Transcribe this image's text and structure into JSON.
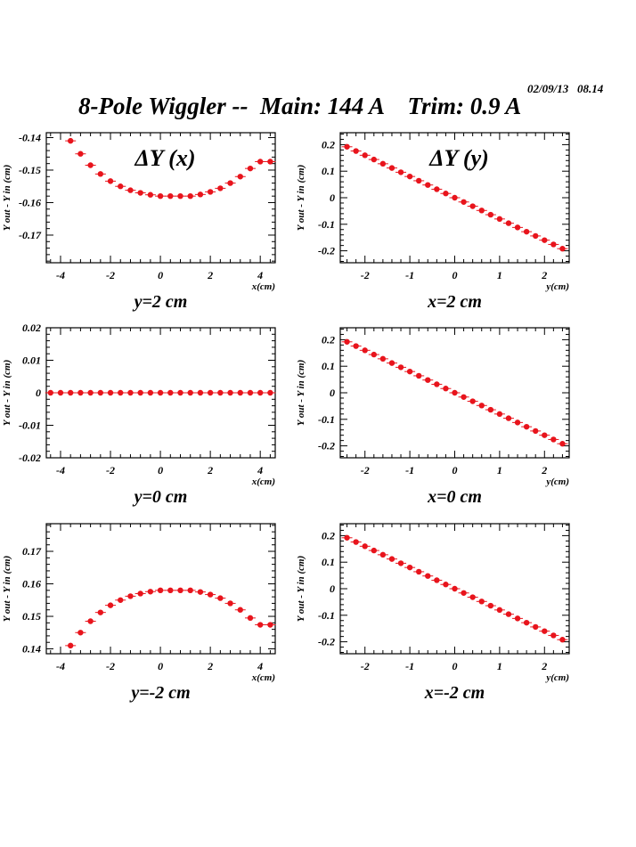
{
  "header": {
    "timestamp": "02/09/13   08.14",
    "title": "8-Pole Wiggler --  Main: 144 A    Trim: 0.9 A"
  },
  "colors": {
    "marker": "#e8141c",
    "axis": "#000000"
  },
  "chart_data": [
    {
      "type": "scatter",
      "title": "ΔY (x)",
      "caption": "y=2 cm",
      "xlabel": "x(cm)",
      "ylabel": "Y_out - Y_in (cm)",
      "xlim": [
        -4.57,
        4.6
      ],
      "ylim": [
        -0.1785,
        -0.1385
      ],
      "xticks": [
        -4,
        -2,
        0,
        2,
        4
      ],
      "xtick_labels": [
        "-4",
        "-2",
        "0",
        "2",
        "4"
      ],
      "yticks": [
        -0.17,
        -0.16,
        -0.15,
        -0.14
      ],
      "ytick_labels": [
        "-0.17",
        "-0.16",
        "-0.15",
        "-0.14"
      ],
      "x": [
        -3.6,
        -3.2,
        -2.8,
        -2.4,
        -2.0,
        -1.6,
        -1.2,
        -0.8,
        -0.4,
        0,
        0.4,
        0.8,
        1.2,
        1.6,
        2.0,
        2.4,
        2.8,
        3.2,
        3.6,
        4.0,
        4.4
      ],
      "y": [
        -0.141,
        -0.145,
        -0.1485,
        -0.1512,
        -0.1534,
        -0.155,
        -0.1562,
        -0.157,
        -0.1576,
        -0.158,
        -0.158,
        -0.158,
        -0.158,
        -0.1575,
        -0.1567,
        -0.1556,
        -0.154,
        -0.152,
        -0.1495,
        -0.1474,
        -0.1474
      ]
    },
    {
      "type": "scatter",
      "title": "ΔY (y)",
      "caption": "x=2 cm",
      "xlabel": "y(cm)",
      "ylabel": "Y_out - Y_in (cm)",
      "xlim": [
        -2.55,
        2.55
      ],
      "ylim": [
        -0.245,
        0.245
      ],
      "xticks": [
        -2,
        -1,
        0,
        1,
        2
      ],
      "xtick_labels": [
        "-2",
        "-1",
        "0",
        "1",
        "2"
      ],
      "yticks": [
        -0.2,
        -0.1,
        0,
        0.1,
        0.2
      ],
      "ytick_labels": [
        "-0.2",
        "-0.1",
        "0",
        "0.1",
        "0.2"
      ],
      "x": "linear:-2.4:2.4:0.2",
      "slope": -0.08
    },
    {
      "type": "scatter",
      "title": "",
      "caption": "y=0 cm",
      "xlabel": "x(cm)",
      "ylabel": "Y_out - Y_in (cm)",
      "xlim": [
        -4.57,
        4.6
      ],
      "ylim": [
        -0.02,
        0.02
      ],
      "xticks": [
        -4,
        -2,
        0,
        2,
        4
      ],
      "xtick_labels": [
        "-4",
        "-2",
        "0",
        "2",
        "4"
      ],
      "yticks": [
        -0.02,
        -0.01,
        0,
        0.01,
        0.02
      ],
      "ytick_labels": [
        "-0.02",
        "-0.01",
        "0",
        "0.01",
        "0.02"
      ],
      "x": "linear:-4.4:4.4:0.4",
      "slope": 0
    },
    {
      "type": "scatter",
      "title": "",
      "caption": "x=0 cm",
      "xlabel": "y(cm)",
      "ylabel": "Y_out - Y_in (cm)",
      "xlim": [
        -2.55,
        2.55
      ],
      "ylim": [
        -0.245,
        0.245
      ],
      "xticks": [
        -2,
        -1,
        0,
        1,
        2
      ],
      "xtick_labels": [
        "-2",
        "-1",
        "0",
        "1",
        "2"
      ],
      "yticks": [
        -0.2,
        -0.1,
        0,
        0.1,
        0.2
      ],
      "ytick_labels": [
        "-0.2",
        "-0.1",
        "0",
        "0.1",
        "0.2"
      ],
      "x": "linear:-2.4:2.4:0.2",
      "slope": -0.08
    },
    {
      "type": "scatter",
      "title": "",
      "caption": "y=-2 cm",
      "xlabel": "x(cm)",
      "ylabel": "Y_out - Y_in (cm)",
      "xlim": [
        -4.57,
        4.6
      ],
      "ylim": [
        0.1385,
        0.1785
      ],
      "xticks": [
        -4,
        -2,
        0,
        2,
        4
      ],
      "xtick_labels": [
        "-4",
        "-2",
        "0",
        "2",
        "4"
      ],
      "yticks": [
        0.14,
        0.15,
        0.16,
        0.17
      ],
      "ytick_labels": [
        "0.14",
        "0.15",
        "0.16",
        "0.17"
      ],
      "x": [
        -3.6,
        -3.2,
        -2.8,
        -2.4,
        -2.0,
        -1.6,
        -1.2,
        -0.8,
        -0.4,
        0,
        0.4,
        0.8,
        1.2,
        1.6,
        2.0,
        2.4,
        2.8,
        3.2,
        3.6,
        4.0,
        4.4
      ],
      "y": [
        0.141,
        0.145,
        0.1485,
        0.1512,
        0.1534,
        0.155,
        0.1562,
        0.157,
        0.1576,
        0.158,
        0.158,
        0.158,
        0.158,
        0.1575,
        0.1567,
        0.1556,
        0.154,
        0.152,
        0.1495,
        0.1474,
        0.1474
      ]
    },
    {
      "type": "scatter",
      "title": "",
      "caption": "x=-2 cm",
      "xlabel": "y(cm)",
      "ylabel": "Y_out - Y_in (cm)",
      "xlim": [
        -2.55,
        2.55
      ],
      "ylim": [
        -0.245,
        0.245
      ],
      "xticks": [
        -2,
        -1,
        0,
        1,
        2
      ],
      "xtick_labels": [
        "-2",
        "-1",
        "0",
        "1",
        "2"
      ],
      "yticks": [
        -0.2,
        -0.1,
        0,
        0.1,
        0.2
      ],
      "ytick_labels": [
        "-0.2",
        "-0.1",
        "0",
        "0.1",
        "0.2"
      ],
      "x": "linear:-2.4:2.4:0.2",
      "slope": -0.08
    }
  ]
}
